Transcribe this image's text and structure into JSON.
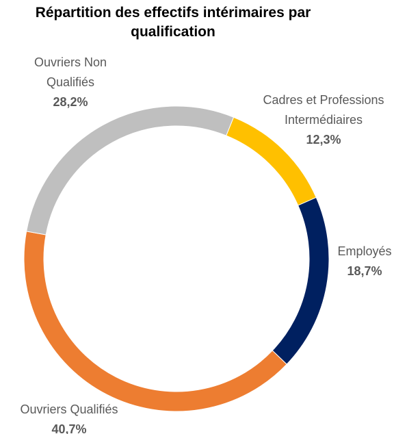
{
  "chart_data": {
    "type": "donut",
    "title": "Répartition des effectifs intérimaires par qualification",
    "categories": [
      "Cadres et Professions Intermédiaires",
      "Employés",
      "Ouvriers Qualifiés",
      "Ouvriers Non Qualifiés"
    ],
    "values": [
      12.3,
      18.7,
      40.7,
      28.2
    ],
    "value_labels": [
      "12,3%",
      "18,7%",
      "40,7%",
      "28,2%"
    ],
    "colors": [
      "#FFC000",
      "#002060",
      "#ED7D31",
      "#BFBFBF"
    ]
  }
}
